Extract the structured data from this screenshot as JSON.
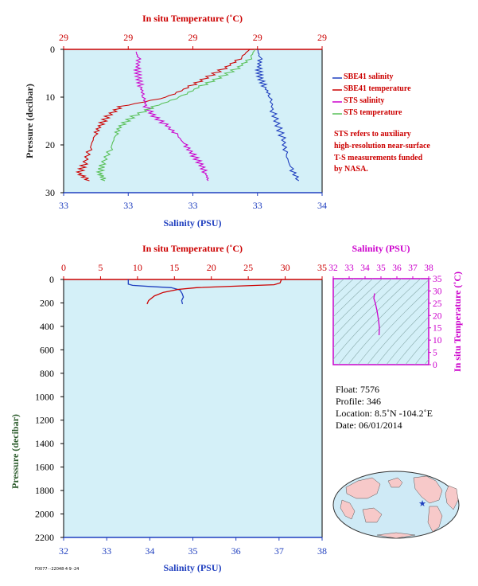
{
  "chart_data": [
    {
      "type": "line",
      "title": "",
      "top_axis": {
        "label": "In situ Temperature (˚C)",
        "ticks": [
          "29",
          "29",
          "29",
          "29",
          "29"
        ]
      },
      "xlabel": "Salinity (PSU)",
      "x_ticks": [
        "33",
        "33",
        "33",
        "33",
        "34"
      ],
      "ylabel": "Pressure (decibar)",
      "ylim": [
        30,
        0
      ],
      "y_ticks": [
        0,
        10,
        20,
        30
      ],
      "grid": false,
      "legend": "right",
      "series": [
        {
          "name": "SBE41 salinity",
          "color": "#1f3fbf",
          "points": [
            [
              0.75,
              0
            ],
            [
              0.76,
              2
            ],
            [
              0.755,
              4
            ],
            [
              0.76,
              6
            ],
            [
              0.78,
              8
            ],
            [
              0.8,
              10
            ],
            [
              0.81,
              13
            ],
            [
              0.83,
              16
            ],
            [
              0.85,
              19
            ],
            [
              0.86,
              22
            ],
            [
              0.88,
              25
            ],
            [
              0.91,
              27.5
            ]
          ]
        },
        {
          "name": "SBE41 temperature",
          "color": "#cc0000",
          "points": [
            [
              0.72,
              0
            ],
            [
              0.68,
              2
            ],
            [
              0.62,
              4
            ],
            [
              0.55,
              6
            ],
            [
              0.48,
              8
            ],
            [
              0.4,
              10
            ],
            [
              0.22,
              12
            ],
            [
              0.17,
              14
            ],
            [
              0.14,
              16
            ],
            [
              0.12,
              18
            ],
            [
              0.1,
              21
            ],
            [
              0.08,
              24
            ],
            [
              0.06,
              26
            ],
            [
              0.1,
              27.5
            ]
          ]
        },
        {
          "name": "STS salinity",
          "color": "#cc00cc",
          "points": [
            [
              0.28,
              0.5
            ],
            [
              0.29,
              2
            ],
            [
              0.285,
              4
            ],
            [
              0.29,
              6
            ],
            [
              0.3,
              8
            ],
            [
              0.31,
              10
            ],
            [
              0.32,
              12
            ],
            [
              0.35,
              14
            ],
            [
              0.4,
              16
            ],
            [
              0.44,
              18
            ],
            [
              0.47,
              20
            ],
            [
              0.5,
              22
            ],
            [
              0.53,
              24
            ],
            [
              0.55,
              26
            ],
            [
              0.56,
              27.5
            ]
          ]
        },
        {
          "name": "STS temperature",
          "color": "#58c058",
          "points": [
            [
              0.74,
              0
            ],
            [
              0.72,
              2
            ],
            [
              0.67,
              4
            ],
            [
              0.6,
              6
            ],
            [
              0.52,
              8
            ],
            [
              0.45,
              10
            ],
            [
              0.35,
              12
            ],
            [
              0.27,
              14
            ],
            [
              0.22,
              16
            ],
            [
              0.2,
              18
            ],
            [
              0.18,
              21
            ],
            [
              0.15,
              24
            ],
            [
              0.14,
              26
            ],
            [
              0.16,
              27.5
            ]
          ]
        }
      ],
      "note": [
        "STS refers to auxiliary",
        "high-resolution near-surface",
        "T-S measurements funded",
        "by NASA."
      ]
    },
    {
      "type": "line",
      "title": "",
      "top_axis": {
        "label": "In situ Temperature (˚C)",
        "ticks": [
          "0",
          "5",
          "10",
          "15",
          "20",
          "25",
          "30",
          "35"
        ],
        "range": [
          0,
          35
        ]
      },
      "xlabel": "Salinity (PSU)",
      "x_ticks": [
        "32",
        "33",
        "34",
        "35",
        "36",
        "37",
        "38"
      ],
      "xlim": [
        32,
        38
      ],
      "ylabel": "Pressure (decibar)",
      "ylim": [
        2200,
        0
      ],
      "y_ticks": [
        0,
        200,
        400,
        600,
        800,
        1000,
        1200,
        1400,
        1600,
        1800,
        2000,
        2200
      ],
      "grid": false,
      "series": [
        {
          "name": "salinity",
          "color": "#1f3fbf",
          "points": [
            [
              33.5,
              0
            ],
            [
              33.5,
              40
            ],
            [
              33.6,
              50
            ],
            [
              34.0,
              60
            ],
            [
              34.5,
              70
            ],
            [
              34.7,
              90
            ],
            [
              34.75,
              120
            ],
            [
              34.78,
              150
            ],
            [
              34.74,
              180
            ],
            [
              34.76,
              210
            ]
          ]
        },
        {
          "name": "temperature",
          "color": "#cc0000",
          "points": [
            [
              29.5,
              0
            ],
            [
              29.3,
              30
            ],
            [
              28.5,
              45
            ],
            [
              24,
              55
            ],
            [
              18,
              70
            ],
            [
              15.5,
              85
            ],
            [
              13.5,
              110
            ],
            [
              12.3,
              140
            ],
            [
              11.5,
              180
            ],
            [
              11.3,
              210
            ]
          ]
        }
      ]
    },
    {
      "type": "scatter",
      "title": "",
      "top_axis": {
        "label": "Salinity (PSU)",
        "ticks": [
          "32",
          "33",
          "34",
          "35",
          "36",
          "37",
          "38"
        ],
        "range": [
          32,
          38
        ]
      },
      "ylabel": "In situ Temperature (˚C)",
      "y_ticks": [
        "0",
        "5",
        "10",
        "15",
        "20",
        "25",
        "30",
        "35"
      ],
      "ylim": [
        0,
        35
      ],
      "series": [
        {
          "name": "T-S",
          "color": "#cc00cc",
          "points": [
            [
              34.6,
              29
            ],
            [
              34.55,
              27
            ],
            [
              34.65,
              25
            ],
            [
              34.75,
              22
            ],
            [
              34.85,
              18
            ],
            [
              34.9,
              15
            ],
            [
              34.88,
              12
            ]
          ]
        }
      ]
    }
  ],
  "float_info": {
    "float": "Float:  7576",
    "profile": "Profile:  346",
    "location": "Location:  8.5˚N  -104.2˚E",
    "date": "Date:  06/01/2014"
  },
  "footer_code": "F0077···22048·4·9··24"
}
